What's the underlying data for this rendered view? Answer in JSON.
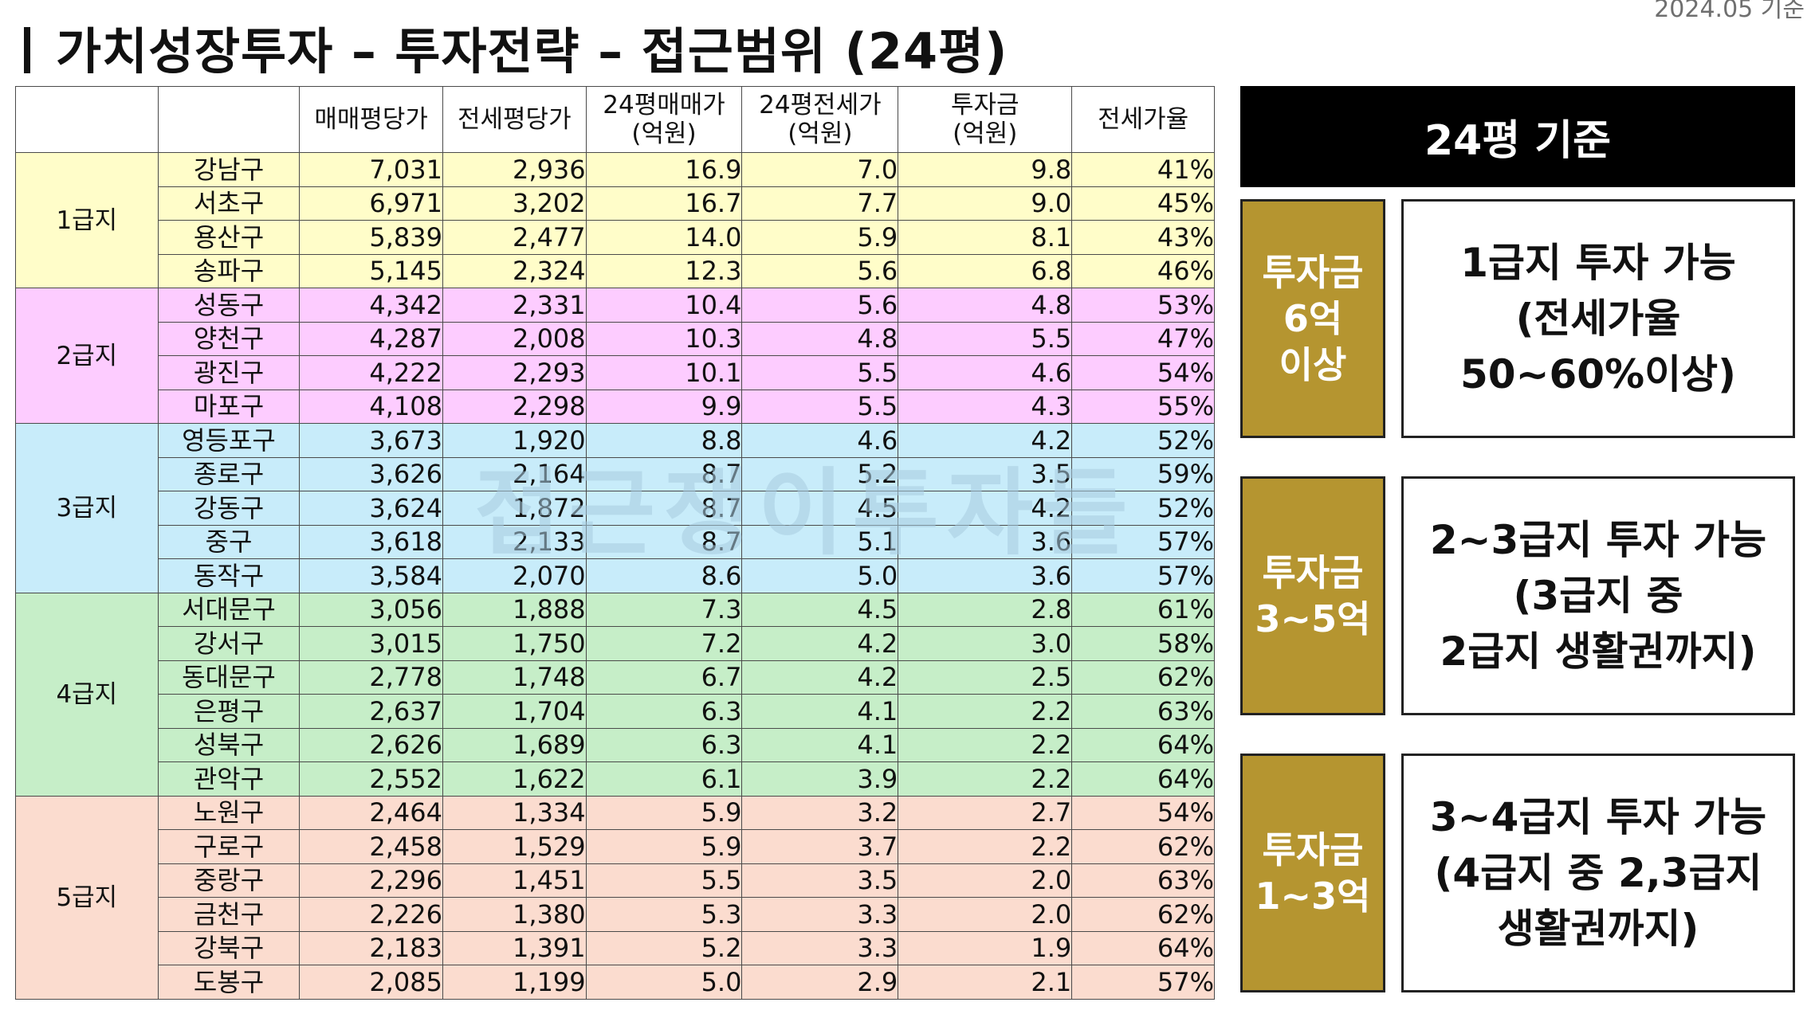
{
  "date_label": "2024.05 기준",
  "title": "가치성장투자 – 투자전략 – 접근범위 (24평)",
  "table": {
    "headers": [
      "",
      "",
      "매매평당가",
      "전세평당가",
      "24평매매가\n(억원)",
      "24평전세가\n(억원)",
      "투자금\n(억원)",
      "전세가율"
    ],
    "tiers": [
      {
        "label": "1급지",
        "color": "#fffdc9",
        "rows": [
          [
            "강남구",
            "7,031",
            "2,936",
            "16.9",
            "7.0",
            "9.8",
            "41%"
          ],
          [
            "서초구",
            "6,971",
            "3,202",
            "16.7",
            "7.7",
            "9.0",
            "45%"
          ],
          [
            "용산구",
            "5,839",
            "2,477",
            "14.0",
            "5.9",
            "8.1",
            "43%"
          ],
          [
            "송파구",
            "5,145",
            "2,324",
            "12.3",
            "5.6",
            "6.8",
            "46%"
          ]
        ]
      },
      {
        "label": "2급지",
        "color": "#fdccff",
        "rows": [
          [
            "성동구",
            "4,342",
            "2,331",
            "10.4",
            "5.6",
            "4.8",
            "53%"
          ],
          [
            "양천구",
            "4,287",
            "2,008",
            "10.3",
            "4.8",
            "5.5",
            "47%"
          ],
          [
            "광진구",
            "4,222",
            "2,293",
            "10.1",
            "5.5",
            "4.6",
            "54%"
          ],
          [
            "마포구",
            "4,108",
            "2,298",
            "9.9",
            "5.5",
            "4.3",
            "55%"
          ]
        ]
      },
      {
        "label": "3급지",
        "color": "#c8ecfa",
        "rows": [
          [
            "영등포구",
            "3,673",
            "1,920",
            "8.8",
            "4.6",
            "4.2",
            "52%"
          ],
          [
            "종로구",
            "3,626",
            "2,164",
            "8.7",
            "5.2",
            "3.5",
            "59%"
          ],
          [
            "강동구",
            "3,624",
            "1,872",
            "8.7",
            "4.5",
            "4.2",
            "52%"
          ],
          [
            "중구",
            "3,618",
            "2,133",
            "8.7",
            "5.1",
            "3.6",
            "57%"
          ],
          [
            "동작구",
            "3,584",
            "2,070",
            "8.6",
            "5.0",
            "3.6",
            "57%"
          ]
        ]
      },
      {
        "label": "4급지",
        "color": "#c6eec8",
        "rows": [
          [
            "서대문구",
            "3,056",
            "1,888",
            "7.3",
            "4.5",
            "2.8",
            "61%"
          ],
          [
            "강서구",
            "3,015",
            "1,750",
            "7.2",
            "4.2",
            "3.0",
            "58%"
          ],
          [
            "동대문구",
            "2,778",
            "1,748",
            "6.7",
            "4.2",
            "2.5",
            "62%"
          ],
          [
            "은평구",
            "2,637",
            "1,704",
            "6.3",
            "4.1",
            "2.2",
            "63%"
          ],
          [
            "성북구",
            "2,626",
            "1,689",
            "6.3",
            "4.1",
            "2.2",
            "64%"
          ],
          [
            "관악구",
            "2,552",
            "1,622",
            "6.1",
            "3.9",
            "2.2",
            "64%"
          ]
        ]
      },
      {
        "label": "5급지",
        "color": "#fbdccf",
        "rows": [
          [
            "노원구",
            "2,464",
            "1,334",
            "5.9",
            "3.2",
            "2.7",
            "54%"
          ],
          [
            "구로구",
            "2,458",
            "1,529",
            "5.9",
            "3.7",
            "2.2",
            "62%"
          ],
          [
            "중랑구",
            "2,296",
            "1,451",
            "5.5",
            "3.5",
            "2.0",
            "63%"
          ],
          [
            "금천구",
            "2,226",
            "1,380",
            "5.3",
            "3.3",
            "2.0",
            "62%"
          ],
          [
            "강북구",
            "2,183",
            "1,391",
            "5.2",
            "3.3",
            "1.9",
            "64%"
          ],
          [
            "도봉구",
            "2,085",
            "1,199",
            "5.0",
            "2.9",
            "2.1",
            "57%"
          ]
        ]
      }
    ]
  },
  "watermark": "접근쟁이투자들",
  "side": {
    "header": "24평 기준",
    "boxes": [
      {
        "investment": [
          "투자금",
          "6억",
          "이상"
        ],
        "description": [
          "1급지 투자 가능",
          "(전세가율",
          "50~60%이상)"
        ]
      },
      {
        "investment": [
          "투자금",
          "3~5억"
        ],
        "description": [
          "2~3급지 투자 가능",
          "(3급지 중",
          "2급지 생활권까지)"
        ]
      },
      {
        "investment": [
          "투자금",
          "1~3억"
        ],
        "description": [
          "3~4급지 투자 가능",
          "(4급지 중 2,3급지",
          "생활권까지)"
        ]
      }
    ]
  }
}
